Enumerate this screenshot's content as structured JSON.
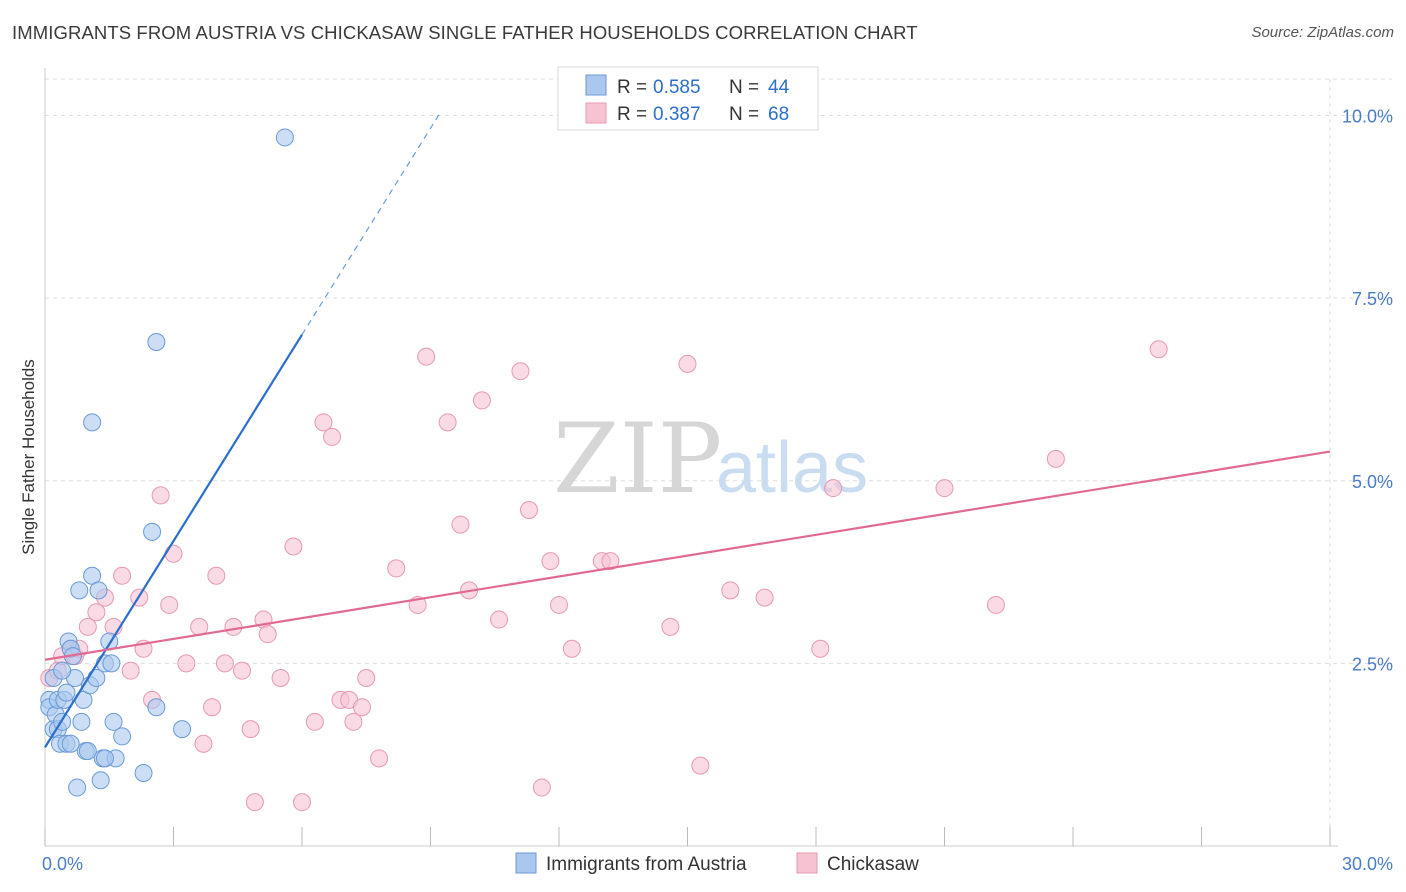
{
  "title": "IMMIGRANTS FROM AUSTRIA VS CHICKASAW SINGLE FATHER HOUSEHOLDS CORRELATION CHART",
  "source": "Source: ZipAtlas.com",
  "watermark": {
    "zip": "ZIP",
    "atlas": "atlas"
  },
  "colors": {
    "austria_fill": "#aac8ee",
    "austria_stroke": "#6a9ad6",
    "austria_line": "#2b6fcb",
    "chickasaw_fill": "#f7c3d3",
    "chickasaw_stroke": "#e898b2",
    "chickasaw_line": "#e06a93",
    "tick_text": "#4a7cc7",
    "grid": "#dddddd"
  },
  "legend_top": [
    {
      "r_label": "R =",
      "r_value": "0.585",
      "n_label": "N =",
      "n_value": "44"
    },
    {
      "r_label": "R =",
      "r_value": "0.387",
      "n_label": "N =",
      "n_value": "68"
    }
  ],
  "chart_data": {
    "type": "scatter",
    "title": "IMMIGRANTS FROM AUSTRIA VS CHICKASAW SINGLE FATHER HOUSEHOLDS CORRELATION CHART",
    "xlabel": "",
    "ylabel": "Single Father Households",
    "xlim": [
      0,
      30
    ],
    "ylim": [
      0,
      10.5
    ],
    "x_tick_labels": [
      "0.0%",
      "30.0%"
    ],
    "y_ticks": [
      2.5,
      5.0,
      7.5,
      10.0
    ],
    "y_tick_labels": [
      "2.5%",
      "5.0%",
      "7.5%",
      "10.0%"
    ],
    "grid": true,
    "series": [
      {
        "name": "Immigrants from Austria",
        "R": 0.585,
        "N": 44,
        "trend": {
          "x0": 0.0,
          "y0": 1.35,
          "x1": 6.0,
          "y1": 7.0,
          "dash_to_x": 9.2
        },
        "points": [
          [
            0.1,
            2.0
          ],
          [
            0.1,
            1.9
          ],
          [
            0.2,
            2.3
          ],
          [
            0.2,
            1.6
          ],
          [
            0.25,
            1.8
          ],
          [
            0.3,
            2.0
          ],
          [
            0.3,
            1.6
          ],
          [
            0.35,
            1.4
          ],
          [
            0.4,
            1.7
          ],
          [
            0.45,
            2.0
          ],
          [
            0.5,
            1.4
          ],
          [
            0.5,
            2.1
          ],
          [
            0.55,
            2.8
          ],
          [
            0.6,
            2.7
          ],
          [
            0.65,
            2.6
          ],
          [
            0.7,
            2.3
          ],
          [
            0.75,
            0.8
          ],
          [
            0.8,
            3.5
          ],
          [
            0.85,
            1.7
          ],
          [
            0.9,
            2.0
          ],
          [
            0.95,
            1.3
          ],
          [
            1.0,
            1.3
          ],
          [
            1.05,
            2.2
          ],
          [
            1.1,
            3.7
          ],
          [
            1.1,
            5.8
          ],
          [
            1.2,
            2.3
          ],
          [
            1.25,
            3.5
          ],
          [
            1.3,
            0.9
          ],
          [
            1.35,
            1.2
          ],
          [
            1.4,
            2.5
          ],
          [
            1.5,
            2.8
          ],
          [
            1.55,
            2.5
          ],
          [
            1.6,
            1.7
          ],
          [
            1.65,
            1.2
          ],
          [
            1.8,
            1.5
          ],
          [
            2.3,
            1.0
          ],
          [
            2.5,
            4.3
          ],
          [
            2.6,
            1.9
          ],
          [
            2.6,
            6.9
          ],
          [
            3.2,
            1.6
          ],
          [
            5.6,
            9.7
          ],
          [
            0.4,
            2.4
          ],
          [
            1.4,
            1.2
          ],
          [
            0.6,
            1.4
          ]
        ]
      },
      {
        "name": "Chickasaw",
        "R": 0.387,
        "N": 68,
        "trend": {
          "x0": 0.0,
          "y0": 2.55,
          "x1": 30.0,
          "y1": 5.4
        },
        "points": [
          [
            0.1,
            2.3
          ],
          [
            0.3,
            2.4
          ],
          [
            0.4,
            2.6
          ],
          [
            0.6,
            2.7
          ],
          [
            0.7,
            2.6
          ],
          [
            0.8,
            2.7
          ],
          [
            1.0,
            3.0
          ],
          [
            1.2,
            3.2
          ],
          [
            1.4,
            3.4
          ],
          [
            1.6,
            3.0
          ],
          [
            1.8,
            3.7
          ],
          [
            2.0,
            2.4
          ],
          [
            2.2,
            3.4
          ],
          [
            2.3,
            2.7
          ],
          [
            2.5,
            2.0
          ],
          [
            2.7,
            4.8
          ],
          [
            2.9,
            3.3
          ],
          [
            3.0,
            4.0
          ],
          [
            3.3,
            2.5
          ],
          [
            3.6,
            3.0
          ],
          [
            3.7,
            1.4
          ],
          [
            3.9,
            1.9
          ],
          [
            4.0,
            3.7
          ],
          [
            4.2,
            2.5
          ],
          [
            4.4,
            3.0
          ],
          [
            4.6,
            2.4
          ],
          [
            4.8,
            1.6
          ],
          [
            4.9,
            0.6
          ],
          [
            5.1,
            3.1
          ],
          [
            5.2,
            2.9
          ],
          [
            5.5,
            2.3
          ],
          [
            5.8,
            4.1
          ],
          [
            6.0,
            0.6
          ],
          [
            6.3,
            1.7
          ],
          [
            6.5,
            5.8
          ],
          [
            6.7,
            5.6
          ],
          [
            6.9,
            2.0
          ],
          [
            7.1,
            2.0
          ],
          [
            7.2,
            1.7
          ],
          [
            7.4,
            1.9
          ],
          [
            7.5,
            2.3
          ],
          [
            7.8,
            1.2
          ],
          [
            8.2,
            3.8
          ],
          [
            8.7,
            3.3
          ],
          [
            8.9,
            6.7
          ],
          [
            9.4,
            5.8
          ],
          [
            9.7,
            4.4
          ],
          [
            9.9,
            3.5
          ],
          [
            10.2,
            6.1
          ],
          [
            10.6,
            3.1
          ],
          [
            11.1,
            6.5
          ],
          [
            11.3,
            4.6
          ],
          [
            11.6,
            0.8
          ],
          [
            11.8,
            3.9
          ],
          [
            12.0,
            3.3
          ],
          [
            12.3,
            2.7
          ],
          [
            13.0,
            3.9
          ],
          [
            13.2,
            3.9
          ],
          [
            14.6,
            3.0
          ],
          [
            15.0,
            6.6
          ],
          [
            15.3,
            1.1
          ],
          [
            16.0,
            3.5
          ],
          [
            16.8,
            3.4
          ],
          [
            18.1,
            2.7
          ],
          [
            18.4,
            4.9
          ],
          [
            21.0,
            4.9
          ],
          [
            22.2,
            3.3
          ],
          [
            23.6,
            5.3
          ]
        ]
      }
    ],
    "extra_points_chickasaw": [
      [
        26.0,
        6.8
      ]
    ]
  },
  "bottom_legend": [
    {
      "label": "Immigrants from Austria"
    },
    {
      "label": "Chickasaw"
    }
  ]
}
